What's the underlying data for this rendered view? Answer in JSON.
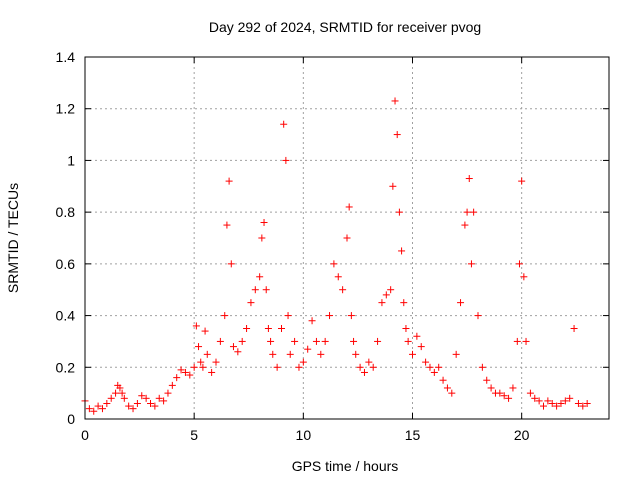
{
  "chart_data": {
    "type": "scatter",
    "title": "Day 292 of 2024, SRMTID for receiver pvog",
    "xlabel": "GPS time / hours",
    "ylabel": "SRMTID / TECUs",
    "xlim": [
      0,
      24
    ],
    "ylim": [
      0,
      1.4
    ],
    "xticks": [
      "0",
      "5",
      "10",
      "15",
      "20"
    ],
    "yticks": [
      "0",
      "0.2",
      "0.4",
      "0.6",
      "0.8",
      "1",
      "1.2",
      "1.4"
    ],
    "grid": true,
    "marker": "+",
    "marker_color": "#ff0000",
    "series": [
      {
        "name": "SRMTID",
        "x": [
          0.0,
          0.2,
          0.4,
          0.6,
          0.8,
          1.0,
          1.2,
          1.4,
          1.5,
          1.6,
          1.7,
          1.8,
          2.0,
          2.2,
          2.4,
          2.6,
          2.8,
          3.0,
          3.2,
          3.4,
          3.6,
          3.8,
          4.0,
          4.2,
          4.4,
          4.6,
          4.8,
          5.0,
          5.1,
          5.2,
          5.3,
          5.4,
          5.5,
          5.6,
          5.8,
          6.0,
          6.2,
          6.4,
          6.5,
          6.6,
          6.7,
          6.8,
          7.0,
          7.2,
          7.4,
          7.6,
          7.8,
          8.0,
          8.1,
          8.2,
          8.3,
          8.4,
          8.5,
          8.6,
          8.8,
          9.0,
          9.1,
          9.2,
          9.3,
          9.4,
          9.6,
          9.8,
          10.0,
          10.2,
          10.4,
          10.6,
          10.8,
          11.0,
          11.2,
          11.4,
          11.6,
          11.8,
          12.0,
          12.1,
          12.2,
          12.3,
          12.4,
          12.6,
          12.8,
          13.0,
          13.2,
          13.4,
          13.6,
          13.8,
          14.0,
          14.1,
          14.2,
          14.3,
          14.4,
          14.5,
          14.6,
          14.7,
          14.8,
          15.0,
          15.2,
          15.4,
          15.6,
          15.8,
          16.0,
          16.2,
          16.4,
          16.6,
          16.8,
          17.0,
          17.2,
          17.4,
          17.5,
          17.6,
          17.7,
          17.8,
          18.0,
          18.2,
          18.4,
          18.6,
          18.8,
          19.0,
          19.2,
          19.4,
          19.6,
          19.8,
          19.9,
          20.0,
          20.1,
          20.2,
          20.4,
          20.6,
          20.8,
          21.0,
          21.2,
          21.4,
          21.6,
          21.8,
          22.0,
          22.2,
          22.4,
          22.6,
          22.8,
          23.0
        ],
        "y": [
          0.07,
          0.04,
          0.03,
          0.05,
          0.04,
          0.06,
          0.08,
          0.1,
          0.13,
          0.12,
          0.1,
          0.08,
          0.05,
          0.04,
          0.06,
          0.09,
          0.08,
          0.06,
          0.05,
          0.08,
          0.07,
          0.1,
          0.13,
          0.16,
          0.19,
          0.18,
          0.17,
          0.2,
          0.36,
          0.28,
          0.22,
          0.2,
          0.34,
          0.25,
          0.18,
          0.22,
          0.3,
          0.4,
          0.75,
          0.92,
          0.6,
          0.28,
          0.26,
          0.3,
          0.35,
          0.45,
          0.5,
          0.55,
          0.7,
          0.76,
          0.5,
          0.35,
          0.3,
          0.25,
          0.2,
          0.35,
          1.14,
          1.0,
          0.4,
          0.25,
          0.3,
          0.2,
          0.22,
          0.27,
          0.38,
          0.3,
          0.25,
          0.3,
          0.4,
          0.6,
          0.55,
          0.5,
          0.7,
          0.82,
          0.4,
          0.3,
          0.25,
          0.2,
          0.18,
          0.22,
          0.2,
          0.3,
          0.45,
          0.48,
          0.5,
          0.9,
          1.23,
          1.1,
          0.8,
          0.65,
          0.45,
          0.35,
          0.3,
          0.25,
          0.32,
          0.28,
          0.22,
          0.2,
          0.18,
          0.2,
          0.15,
          0.12,
          0.1,
          0.25,
          0.45,
          0.75,
          0.8,
          0.93,
          0.6,
          0.8,
          0.4,
          0.2,
          0.15,
          0.12,
          0.1,
          0.1,
          0.09,
          0.08,
          0.12,
          0.3,
          0.6,
          0.92,
          0.55,
          0.3,
          0.1,
          0.08,
          0.07,
          0.05,
          0.07,
          0.06,
          0.05,
          0.06,
          0.07,
          0.08,
          0.35,
          0.06,
          0.05,
          0.06
        ]
      }
    ]
  }
}
